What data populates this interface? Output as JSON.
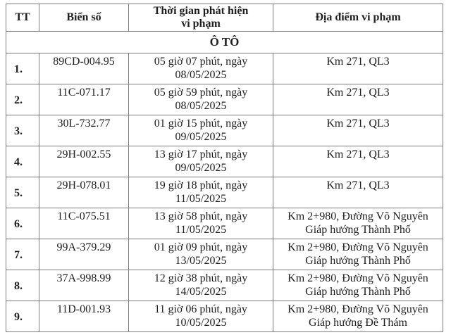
{
  "page": {
    "background_color": "#ffffff",
    "text_color": "#1f1f1f",
    "border_color": "#7d7d7d"
  },
  "table": {
    "columns": {
      "tt": "TT",
      "plate": "Biển số",
      "time": "Thời gian phát hiện\nvi phạm",
      "location": "Địa điểm vi phạm"
    },
    "section_header": "Ô TÔ",
    "rows": [
      {
        "tt": "1.",
        "plate": "89CD-004.95",
        "time": "05 giờ 07 phút, ngày\n08/05/2025",
        "location": "Km 271, QL3"
      },
      {
        "tt": "2.",
        "plate": "11C-071.17",
        "time": "05 giờ 59 phút, ngày\n08/05/2025",
        "location": "Km 271, QL3"
      },
      {
        "tt": "3.",
        "plate": "30L-732.77",
        "time": "01 giờ 15 phút, ngày\n09/05/2025",
        "location": "Km 271, QL3"
      },
      {
        "tt": "4.",
        "plate": "29H-002.55",
        "time": "13 giờ 17 phút, ngày\n09/05/2025",
        "location": "Km 271, QL3"
      },
      {
        "tt": "5.",
        "plate": "29H-078.01",
        "time": "19 giờ 18 phút, ngày\n11/05/2025",
        "location": "Km 271, QL3"
      },
      {
        "tt": "6.",
        "plate": "11C-075.51",
        "time": "13 giờ 58 phút, ngày\n11/05/2025",
        "location": "Km 2+980, Đường Võ Nguyên\nGiáp hướng Thành Phố"
      },
      {
        "tt": "7.",
        "plate": "99A-379.29",
        "time": "01 giờ 09 phút, ngày\n13/05/2025",
        "location": "Km 2+980, Đường Võ Nguyên\nGiáp hướng Thành Phố"
      },
      {
        "tt": "8.",
        "plate": "37A-998.99",
        "time": "12 giờ 38 phút, ngày\n14/05/2025",
        "location": "Km 2+980, Đường Võ Nguyên\nGiáp hướng Thành Phố"
      },
      {
        "tt": "9.",
        "plate": "11D-001.93",
        "time": "11 giờ 06 phút, ngày\n10/05/2025",
        "location": "Km 2+980, Đường Võ Nguyên\nGiáp hướng Đề Thám"
      }
    ]
  }
}
